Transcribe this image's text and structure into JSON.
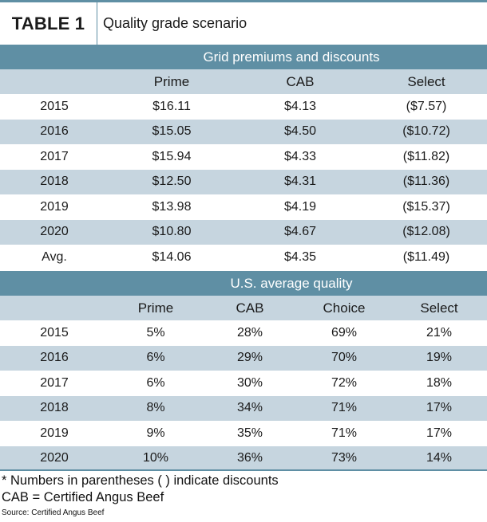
{
  "header": {
    "label": "TABLE 1",
    "title": "Quality grade scenario"
  },
  "section1": {
    "title": "Grid premiums and discounts",
    "columns": [
      "",
      "Prime",
      "CAB",
      "Select"
    ],
    "rows": [
      [
        "2015",
        "$16.11",
        "$4.13",
        "($7.57)"
      ],
      [
        "2016",
        "$15.05",
        "$4.50",
        "($10.72)"
      ],
      [
        "2017",
        "$15.94",
        "$4.33",
        "($11.82)"
      ],
      [
        "2018",
        "$12.50",
        "$4.31",
        "($11.36)"
      ],
      [
        "2019",
        "$13.98",
        "$4.19",
        "($15.37)"
      ],
      [
        "2020",
        "$10.80",
        "$4.67",
        "($12.08)"
      ],
      [
        "Avg.",
        "$14.06",
        "$4.35",
        "($11.49)"
      ]
    ]
  },
  "section2": {
    "title": "U.S. average quality",
    "columns": [
      "",
      "Prime",
      "CAB",
      "Choice",
      "Select"
    ],
    "rows": [
      [
        "2015",
        "5%",
        "28%",
        "69%",
        "21%"
      ],
      [
        "2016",
        "6%",
        "29%",
        "70%",
        "19%"
      ],
      [
        "2017",
        "6%",
        "30%",
        "72%",
        "18%"
      ],
      [
        "2018",
        "8%",
        "34%",
        "71%",
        "17%"
      ],
      [
        "2019",
        "9%",
        "35%",
        "71%",
        "17%"
      ],
      [
        "2020",
        "10%",
        "36%",
        "73%",
        "14%"
      ]
    ]
  },
  "notes": {
    "parentheses": "* Numbers in parentheses ( ) indicate discounts",
    "cab": "CAB = Certified Angus Beef",
    "source": "Source: Certified Angus Beef"
  },
  "colors": {
    "band": "#5f8fa4",
    "stripe": "#c6d5df"
  }
}
